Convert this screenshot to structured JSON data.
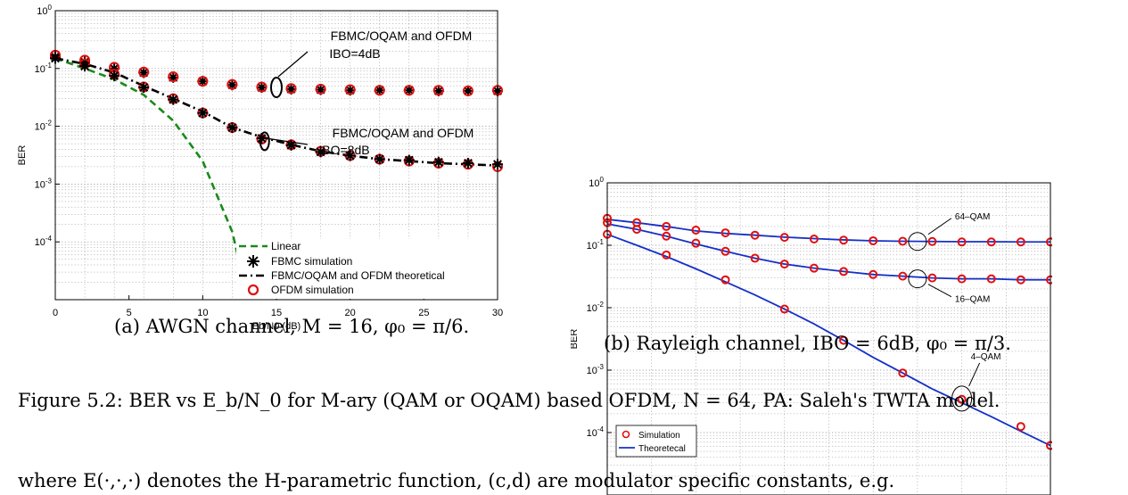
{
  "figure_caption": "Figure 5.2: BER vs E_b/N_0 for M-ary (QAM or OQAM) based OFDM, N = 64, PA: Saleh's TWTA model.",
  "subcaption_a": "(a) AWGN channel, M = 16, φ₀ = π/6.",
  "subcaption_b": "(b) Rayleigh channel, IBO = 6dB, φ₀ = π/3.",
  "paragraph_fragment": "where E(·,·,·) denotes the H-parametric function, (c,d) are modulator specific constants, e.g.",
  "chart_data": [
    {
      "type": "line",
      "id": "a",
      "title": "",
      "xlabel": "Eb/N0 (dB)",
      "ylabel": "BER",
      "xlim": [
        0,
        30
      ],
      "ylim": [
        1e-05,
        1
      ],
      "yscale": "log",
      "grid": true,
      "xticks": [
        "0",
        "5",
        "10",
        "15",
        "20",
        "25",
        "30"
      ],
      "yticks": [
        "10^0",
        "10^-1",
        "10^-2",
        "10^-3",
        "10^-4"
      ],
      "legend_position": "bottom-right",
      "annotations": [
        {
          "text": "FBMC/OQAM and OFDM",
          "text2": "IBO=4dB"
        },
        {
          "text": "FBMC/OQAM and OFDM",
          "text2": "IBO=8dB"
        }
      ],
      "series": [
        {
          "name": "Linear",
          "color": "#1a8a1a",
          "style": "dashed",
          "x": [
            0,
            2,
            4,
            6,
            8,
            10,
            12,
            13
          ],
          "y": [
            0.15,
            0.1,
            0.065,
            0.035,
            0.0125,
            0.0025,
            0.00015,
            1.2e-05
          ]
        },
        {
          "name": "FBMC simulation",
          "color": "#000000",
          "style": "marker-star",
          "x": [
            0,
            2,
            4,
            6,
            8,
            10,
            12,
            14,
            16,
            18,
            20,
            22,
            24,
            26,
            28,
            30
          ],
          "y": [
            0.16,
            0.13,
            0.1,
            0.085,
            0.07,
            0.06,
            0.052,
            0.047,
            0.044,
            0.043,
            0.042,
            0.042,
            0.042,
            0.041,
            0.041,
            0.041
          ]
        },
        {
          "name": "FBMC/OQAM and OFDM theoretical",
          "color": "#000000",
          "style": "dashdot",
          "x": [
            0,
            2,
            4,
            6,
            8,
            10,
            12,
            14,
            16,
            18,
            20,
            22,
            24,
            26,
            28,
            30
          ],
          "y": [
            0.15,
            0.12,
            0.085,
            0.05,
            0.03,
            0.018,
            0.0095,
            0.0065,
            0.0048,
            0.0037,
            0.0031,
            0.0027,
            0.0025,
            0.0023,
            0.0022,
            0.0021
          ]
        },
        {
          "name": "OFDM simulation",
          "color": "#e01010",
          "style": "marker-circle",
          "x": [
            0,
            2,
            4,
            6,
            8,
            10,
            12,
            14,
            16,
            18,
            20,
            22,
            24,
            26,
            28,
            30
          ],
          "y": [
            0.17,
            0.14,
            0.105,
            0.087,
            0.072,
            0.06,
            0.053,
            0.048,
            0.045,
            0.044,
            0.043,
            0.042,
            0.042,
            0.042,
            0.041,
            0.042
          ]
        },
        {
          "name": "",
          "color": "#e01010",
          "style": "marker-circle",
          "x": [
            0,
            2,
            4,
            6,
            8,
            10,
            12,
            14,
            16,
            18,
            20,
            22,
            24,
            26,
            28,
            30
          ],
          "y": [
            0.17,
            0.12,
            0.08,
            0.048,
            0.03,
            0.017,
            0.0095,
            0.006,
            0.0048,
            0.0037,
            0.0031,
            0.0027,
            0.0025,
            0.0023,
            0.0022,
            0.002
          ]
        },
        {
          "name": "",
          "color": "#000000",
          "style": "marker-star",
          "x": [
            0,
            2,
            4,
            6,
            8,
            10,
            12,
            14,
            16,
            18,
            20,
            22,
            24,
            26,
            28,
            30
          ],
          "y": [
            0.15,
            0.11,
            0.075,
            0.047,
            0.029,
            0.017,
            0.0095,
            0.0062,
            0.0047,
            0.0036,
            0.0031,
            0.0027,
            0.0026,
            0.0024,
            0.0023,
            0.0022
          ]
        }
      ]
    },
    {
      "type": "line",
      "id": "b",
      "title": "",
      "xlabel": "",
      "ylabel": "BER",
      "xlim": [
        0,
        30
      ],
      "ylim": [
        1e-05,
        1
      ],
      "yscale": "log",
      "grid": true,
      "yticks": [
        "10^0",
        "10^-1",
        "10^-2",
        "10^-3",
        "10^-4"
      ],
      "legend_position": "bottom-left",
      "annotations": [
        {
          "text": "64–QAM"
        },
        {
          "text": "16–QAM"
        },
        {
          "text": "4–QAM"
        }
      ],
      "series": [
        {
          "name": "Theoretecal",
          "color": "#1530c8",
          "style": "solid",
          "x": [
            0,
            2,
            4,
            6,
            8,
            10,
            12,
            14,
            16,
            18,
            20,
            22,
            24,
            26,
            28,
            30
          ],
          "y": [
            0.26,
            0.23,
            0.2,
            0.17,
            0.155,
            0.145,
            0.135,
            0.128,
            0.122,
            0.118,
            0.116,
            0.115,
            0.114,
            0.114,
            0.113,
            0.113
          ]
        },
        {
          "name": "",
          "color": "#1530c8",
          "style": "solid",
          "x": [
            0,
            2,
            4,
            6,
            8,
            10,
            12,
            14,
            16,
            18,
            20,
            22,
            24,
            26,
            28,
            30
          ],
          "y": [
            0.22,
            0.18,
            0.14,
            0.105,
            0.08,
            0.062,
            0.05,
            0.043,
            0.038,
            0.034,
            0.032,
            0.03,
            0.029,
            0.029,
            0.028,
            0.028
          ]
        },
        {
          "name": "",
          "color": "#1530c8",
          "style": "solid",
          "x": [
            0,
            2,
            4,
            6,
            8,
            10,
            12,
            14,
            16,
            18,
            20,
            22,
            24,
            26,
            28,
            30
          ],
          "y": [
            0.15,
            0.1,
            0.066,
            0.042,
            0.026,
            0.016,
            0.0095,
            0.0055,
            0.003,
            0.0016,
            0.0009,
            0.0005,
            0.0003,
            0.00018,
            0.000105,
            6.2e-05
          ]
        },
        {
          "name": "Simulation",
          "color": "#e01010",
          "style": "marker-circle",
          "x": [
            0,
            2,
            4,
            6,
            8,
            10,
            12,
            14,
            16,
            18,
            20,
            22,
            24,
            26,
            28,
            30
          ],
          "y": [
            0.27,
            0.23,
            0.2,
            0.175,
            0.158,
            0.145,
            0.134,
            0.126,
            0.121,
            0.118,
            0.116,
            0.115,
            0.113,
            0.113,
            0.113,
            0.113
          ]
        },
        {
          "name": "",
          "color": "#e01010",
          "style": "marker-circle",
          "x": [
            0,
            2,
            4,
            6,
            8,
            10,
            12,
            14,
            16,
            18,
            20,
            22,
            24,
            26,
            28,
            30
          ],
          "y": [
            0.23,
            0.18,
            0.14,
            0.108,
            0.08,
            0.062,
            0.05,
            0.043,
            0.038,
            0.034,
            0.032,
            0.03,
            0.029,
            0.029,
            0.028,
            0.028
          ]
        },
        {
          "name": "",
          "color": "#e01010",
          "style": "marker-circle",
          "x": [
            0,
            4,
            8,
            12,
            16,
            20,
            24,
            28,
            30
          ],
          "y": [
            0.15,
            0.07,
            0.028,
            0.0095,
            0.003,
            0.0009,
            0.00034,
            0.000125,
            6.2e-05
          ]
        }
      ]
    }
  ]
}
